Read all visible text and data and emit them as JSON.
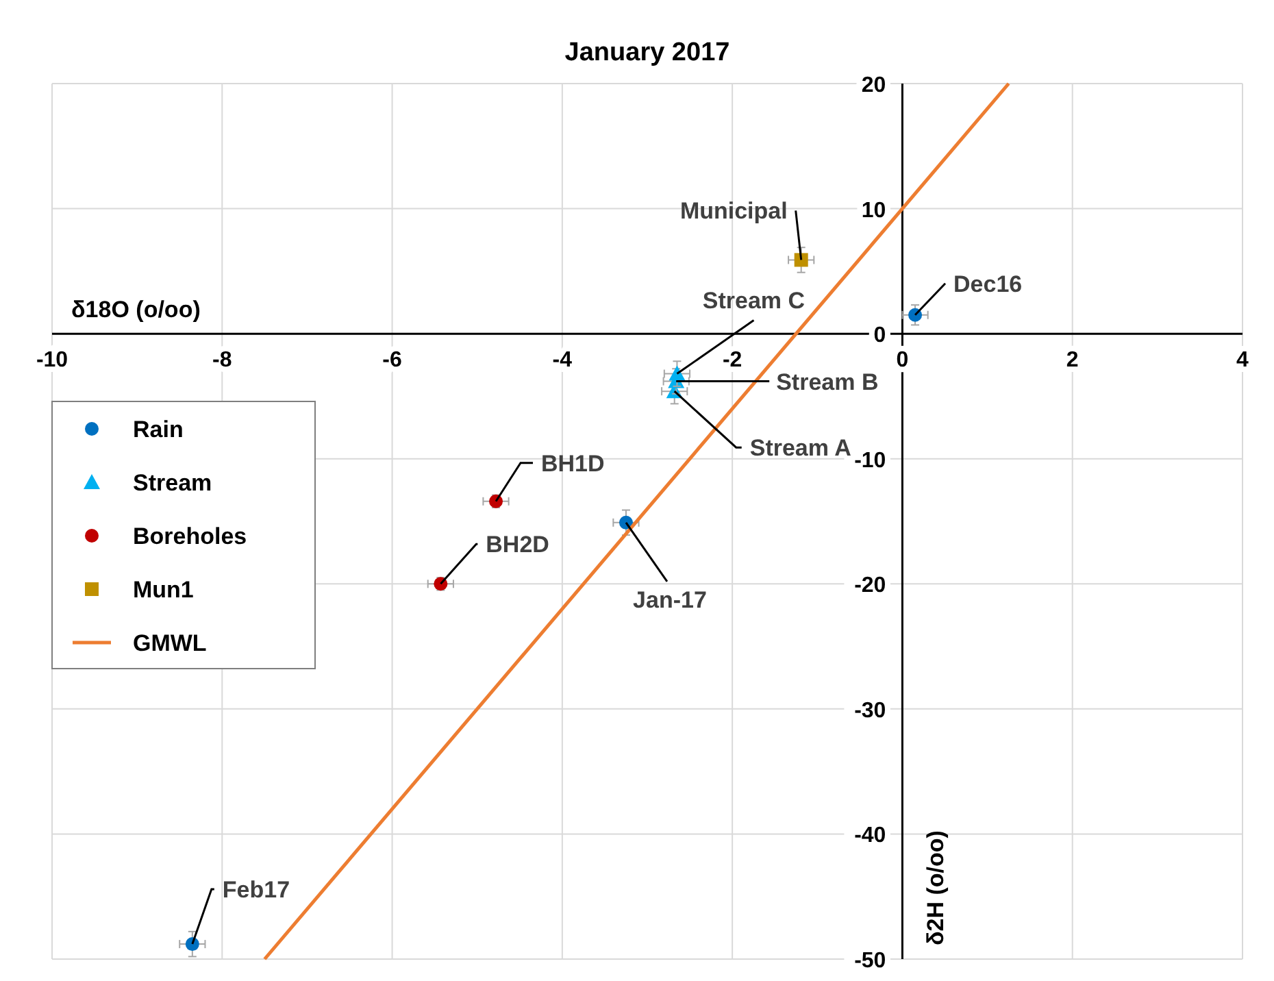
{
  "chart_data": {
    "type": "scatter",
    "title": "January 2017",
    "xlabel": "δ18O (o/oo)",
    "ylabel": "δ2H (o/oo)",
    "xlim": [
      -10,
      4
    ],
    "xticks": [
      -10,
      -8,
      -6,
      -4,
      -2,
      0,
      2,
      4
    ],
    "ylim": [
      -50,
      20
    ],
    "yticks": [
      -50,
      -40,
      -30,
      -20,
      -10,
      0,
      10,
      20
    ],
    "grid": true,
    "legend": "left",
    "series": [
      {
        "name": "Rain",
        "type": "scatter",
        "marker": "circle",
        "color": "#0070c0",
        "x": [
          0.15,
          -3.25,
          -8.35
        ],
        "values": [
          1.5,
          -15.1,
          -48.8
        ],
        "errors": [
          0.8,
          1,
          1
        ],
        "xerrors": [
          0.15,
          0.15,
          0.15
        ]
      },
      {
        "name": "Stream",
        "type": "scatter",
        "marker": "triangle",
        "color": "#00b0f0",
        "x": [
          -2.68,
          -2.66,
          -2.65
        ],
        "values": [
          -4.6,
          -3.8,
          -3.2
        ],
        "errors": [
          1,
          1,
          1
        ],
        "xerrors": [
          0.15,
          0.15,
          0.15
        ]
      },
      {
        "name": "Boreholes",
        "type": "scatter",
        "marker": "circle",
        "color": "#c00000",
        "x": [
          -4.78,
          -5.43
        ],
        "values": [
          -13.4,
          -20.0
        ],
        "errors": [
          0.5,
          0.5
        ],
        "xerrors": [
          0.15,
          0.15
        ]
      },
      {
        "name": "Mun1",
        "type": "scatter",
        "marker": "square",
        "color": "#bf9000",
        "x": [
          -1.19
        ],
        "values": [
          5.9
        ],
        "errors": [
          1
        ],
        "xerrors": [
          0.15
        ]
      },
      {
        "name": "GMWL",
        "type": "line",
        "marker": "none",
        "color": "#ed7d31",
        "x": [
          -7.5,
          1.25
        ],
        "values": [
          -50,
          20
        ]
      }
    ],
    "annotations": [
      {
        "text": "Municipal",
        "x": -1.19,
        "y": 5.9
      },
      {
        "text": "Dec16",
        "x": 0.15,
        "y": 1.5
      },
      {
        "text": "Stream C",
        "x": -2.65,
        "y": -3.2
      },
      {
        "text": "Stream B",
        "x": -2.66,
        "y": -3.8
      },
      {
        "text": "Stream A",
        "x": -2.68,
        "y": -4.6
      },
      {
        "text": "BH1D",
        "x": -4.78,
        "y": -13.4
      },
      {
        "text": "BH2D",
        "x": -5.43,
        "y": -20.0
      },
      {
        "text": "Jan-17",
        "x": -3.25,
        "y": -15.1
      },
      {
        "text": "Feb17",
        "x": -8.35,
        "y": -48.8
      }
    ]
  }
}
